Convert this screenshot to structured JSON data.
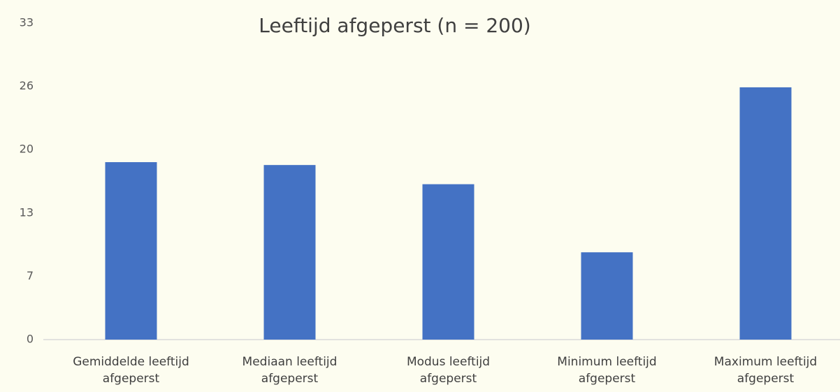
{
  "chart_data": {
    "type": "bar",
    "title": "Leeftijd afgeperst (n = 200)",
    "categories": [
      "Gemiddelde leeftijd afgeperst",
      "Mediaan leeftijd afgeperst",
      "Modus leeftijd afgeperst",
      "Minimum leeftijd afgeperst",
      "Maximum leeftijd afgeperst"
    ],
    "values": [
      18.5,
      18.2,
      16.2,
      9.1,
      26.3
    ],
    "color": "#4472c4",
    "ylim": [
      0,
      33
    ],
    "yticks": [
      0,
      {
        "value": 6.6,
        "label": "7"
      },
      {
        "value": 13.2,
        "label": "13"
      },
      {
        "value": 19.8,
        "label": "20"
      },
      {
        "value": 26.4,
        "label": "26"
      },
      33
    ],
    "grid": false
  }
}
